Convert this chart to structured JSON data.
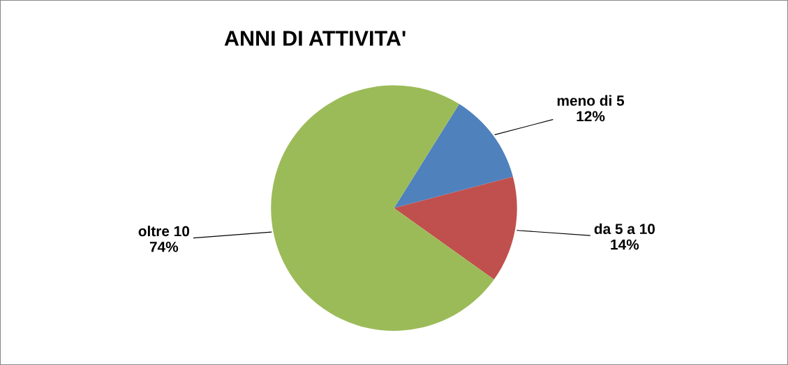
{
  "chart_data": {
    "type": "pie",
    "title": "ANNI DI ATTIVITA'",
    "categories": [
      "meno di 5",
      "da 5 a 10",
      "oltre 10"
    ],
    "values": [
      12,
      14,
      74
    ],
    "value_labels": [
      "12%",
      "14%",
      "74%"
    ],
    "colors": [
      "#4f81bd",
      "#c0504d",
      "#9bbb59"
    ],
    "legend": false
  }
}
